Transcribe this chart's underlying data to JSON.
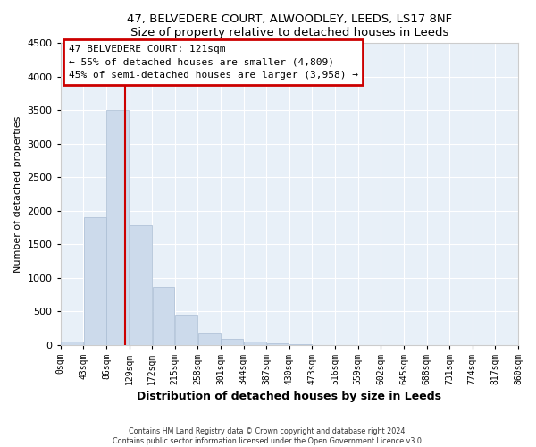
{
  "title": "47, BELVEDERE COURT, ALWOODLEY, LEEDS, LS17 8NF",
  "subtitle": "Size of property relative to detached houses in Leeds",
  "xlabel": "Distribution of detached houses by size in Leeds",
  "ylabel": "Number of detached properties",
  "bar_color": "#ccdaeb",
  "bar_edge_color": "#aabdd4",
  "bins": [
    0,
    43,
    86,
    129,
    172,
    215,
    258,
    301,
    344,
    387,
    430,
    473,
    516,
    559,
    602,
    645,
    688,
    731,
    774,
    817,
    860
  ],
  "bin_labels": [
    "0sqm",
    "43sqm",
    "86sqm",
    "129sqm",
    "172sqm",
    "215sqm",
    "258sqm",
    "301sqm",
    "344sqm",
    "387sqm",
    "430sqm",
    "473sqm",
    "516sqm",
    "559sqm",
    "602sqm",
    "645sqm",
    "688sqm",
    "731sqm",
    "774sqm",
    "817sqm",
    "860sqm"
  ],
  "values": [
    50,
    1900,
    3500,
    1780,
    860,
    450,
    175,
    90,
    55,
    30,
    10,
    0,
    0,
    0,
    0,
    0,
    0,
    0,
    0,
    0
  ],
  "ylim": [
    0,
    4500
  ],
  "yticks": [
    0,
    500,
    1000,
    1500,
    2000,
    2500,
    3000,
    3500,
    4000,
    4500
  ],
  "property_line_x": 121,
  "property_line_color": "#cc0000",
  "annotation_title": "47 BELVEDERE COURT: 121sqm",
  "annotation_line1": "← 55% of detached houses are smaller (4,809)",
  "annotation_line2": "45% of semi-detached houses are larger (3,958) →",
  "annotation_box_color": "#ffffff",
  "annotation_box_edge": "#cc0000",
  "footer1": "Contains HM Land Registry data © Crown copyright and database right 2024.",
  "footer2": "Contains public sector information licensed under the Open Government Licence v3.0.",
  "background_color": "#ffffff",
  "plot_bg_color": "#e8f0f8"
}
